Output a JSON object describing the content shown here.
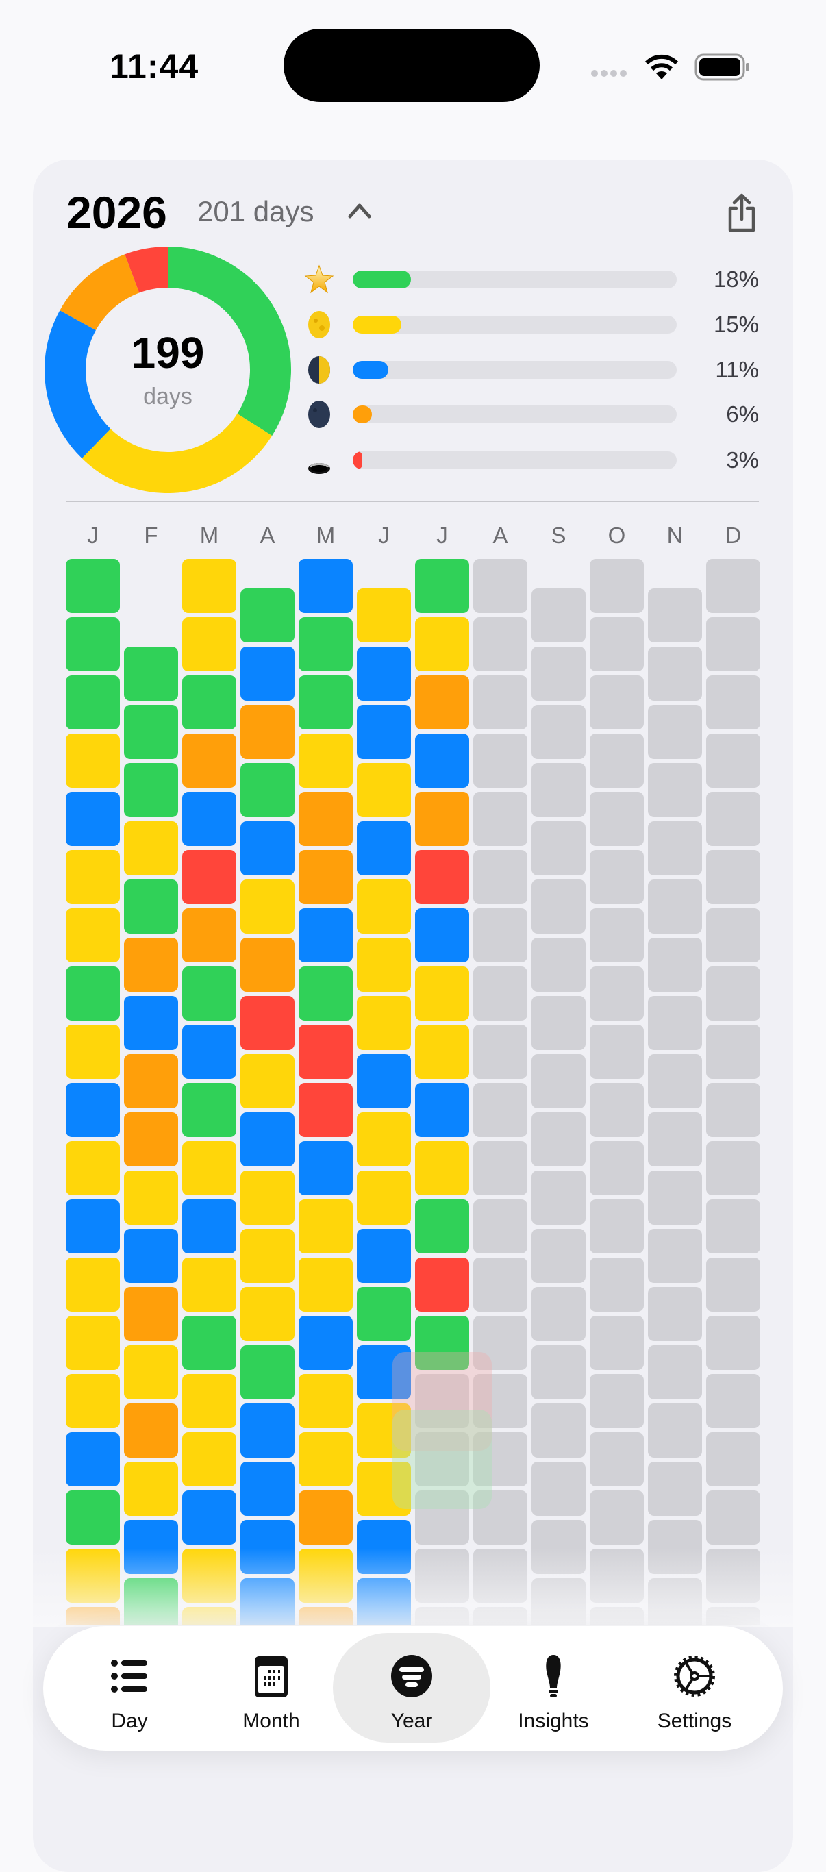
{
  "status_bar": {
    "time": "11:44"
  },
  "header": {
    "year": "2026",
    "days_label": "201 days",
    "chevron_icon": "chevron-up-icon",
    "share_icon": "share-icon"
  },
  "summary": {
    "count": "199",
    "count_label": "days"
  },
  "moods": [
    {
      "icon": "star-icon",
      "percent": 18,
      "label": "18%",
      "color": "#30D158"
    },
    {
      "icon": "full-moon-icon",
      "percent": 15,
      "label": "15%",
      "color": "#FFD60A"
    },
    {
      "icon": "half-moon-icon",
      "percent": 11,
      "label": "11%",
      "color": "#0A84FF"
    },
    {
      "icon": "new-moon-icon",
      "percent": 6,
      "label": "6%",
      "color": "#FF9F0A"
    },
    {
      "icon": "hole-icon",
      "percent": 3,
      "label": "3%",
      "color": "#FF453A"
    }
  ],
  "mood_codes": {
    "G": "#30D158",
    "Y": "#FFD60A",
    "B": "#0A84FF",
    "O": "#FF9F0A",
    "R": "#FF453A",
    "none": "#D1D1D6"
  },
  "months": [
    {
      "label": "J",
      "days": "GGGYBYYGYBYBYYYBGYO"
    },
    {
      "label": "F",
      "days": "GGGYGOBOOYBOYOYBG"
    },
    {
      "label": "M",
      "days": "YYGOBROGBGYBYGYYBYY"
    },
    {
      "label": "A",
      "days": "GBOGBYORYBYYYGBBBB"
    },
    {
      "label": "M",
      "days": "BGGYOOBGRRBYYBYYOYO"
    },
    {
      "label": "J",
      "days": "YBBYBYYYBYYBGBYYBB"
    },
    {
      "label": "J",
      "days": "GYOBORBYYBYGRG"
    },
    {
      "label": "A",
      "days": ""
    },
    {
      "label": "S",
      "days": ""
    },
    {
      "label": "O",
      "days": ""
    },
    {
      "label": "N",
      "days": ""
    },
    {
      "label": "D",
      "days": ""
    }
  ],
  "tabs": [
    {
      "label": "Day",
      "icon": "list-icon",
      "selected": false
    },
    {
      "label": "Month",
      "icon": "calendar-icon",
      "selected": false
    },
    {
      "label": "Year",
      "icon": "year-filter-icon",
      "selected": true
    },
    {
      "label": "Insights",
      "icon": "lightbulb-icon",
      "selected": false
    },
    {
      "label": "Settings",
      "icon": "gear-icon",
      "selected": false
    }
  ]
}
